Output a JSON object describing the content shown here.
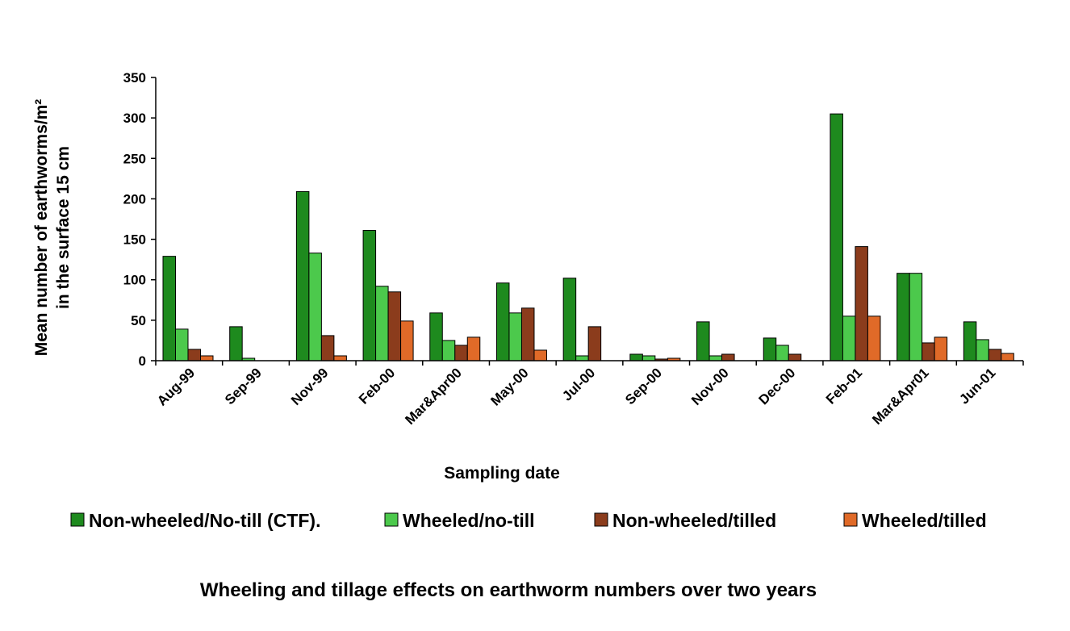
{
  "chart_data": {
    "type": "bar",
    "title": "",
    "caption": "Wheeling and tillage effects on earthworm numbers over two years",
    "xlabel": "Sampling date",
    "ylabel_line1": "Mean number of earthworms/m²",
    "ylabel_line2": "in the surface 15 cm",
    "ylim": [
      0,
      350
    ],
    "yticks": [
      0,
      50,
      100,
      150,
      200,
      250,
      300,
      350
    ],
    "grid": false,
    "legend_position": "bottom",
    "categories": [
      "Aug-99",
      "Sep-99",
      "Nov-99",
      "Feb-00",
      "Mar&Apr00",
      "May-00",
      "Jul-00",
      "Sep-00",
      "Nov-00",
      "Dec-00",
      "Feb-01",
      "Mar&Apr01",
      "Jun-01"
    ],
    "series": [
      {
        "name": "Non-wheeled/No-till (CTF).",
        "color": "#1e8a1e",
        "values": [
          129,
          42,
          209,
          161,
          59,
          96,
          102,
          8,
          48,
          28,
          305,
          108,
          48
        ]
      },
      {
        "name": "Wheeled/no-till",
        "color": "#4cc94c",
        "values": [
          39,
          3,
          133,
          92,
          25,
          59,
          6,
          6,
          6,
          19,
          55,
          108,
          26
        ]
      },
      {
        "name": "Non-wheeled/tilled",
        "color": "#8b3c1c",
        "values": [
          14,
          0,
          31,
          85,
          19,
          65,
          42,
          2,
          8,
          8,
          141,
          22,
          14
        ]
      },
      {
        "name": "Wheeled/tilled",
        "color": "#e06a28",
        "values": [
          6,
          0,
          6,
          49,
          29,
          13,
          0,
          3,
          0,
          0,
          55,
          29,
          9
        ]
      }
    ]
  }
}
